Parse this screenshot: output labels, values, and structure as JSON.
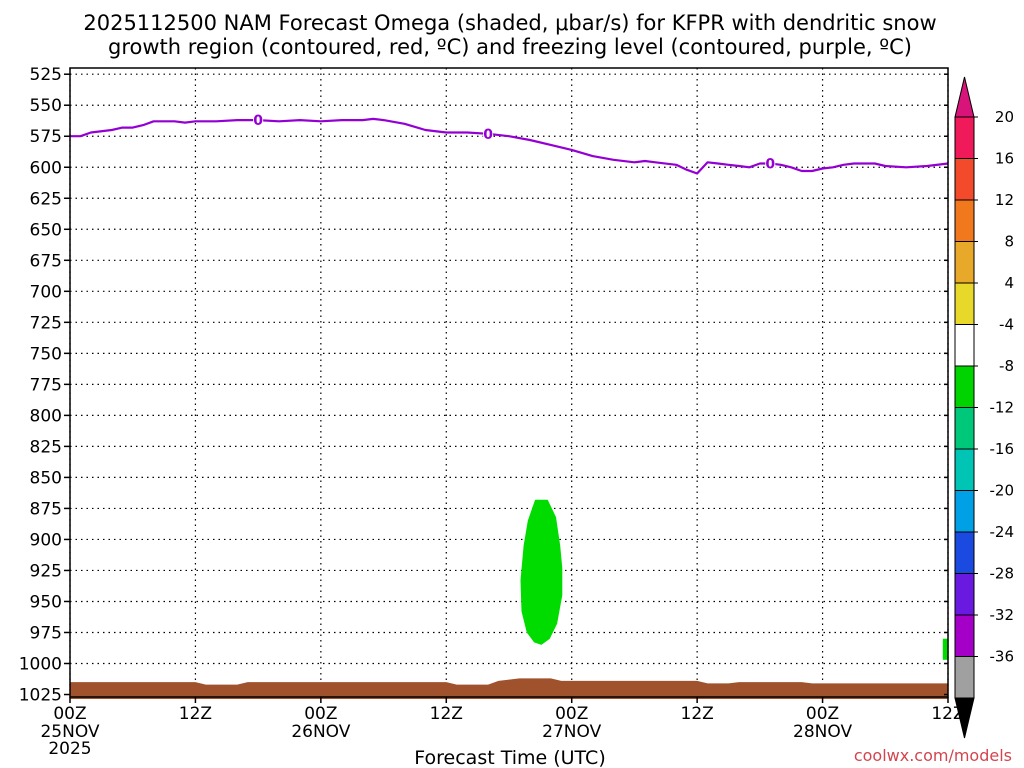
{
  "chart_data": {
    "type": "heatmap",
    "title_line1": "2025112500 NAM Forecast Omega (shaded, μbar/s) for KFPR with dendritic snow",
    "title_line2": "growth region (contoured, red, ºC) and freezing level (contoured, purple, ºC)",
    "xlabel": "Forecast Time (UTC)",
    "ylabel": "",
    "credit": "coolwx.com/models",
    "xlim_hours": [
      0,
      84
    ],
    "y_levels": [
      525,
      550,
      575,
      600,
      625,
      650,
      675,
      700,
      725,
      750,
      775,
      800,
      825,
      850,
      875,
      900,
      925,
      950,
      975,
      1000,
      1025
    ],
    "ylim_hpa": [
      520,
      1027
    ],
    "x_ticks": [
      {
        "hour": 0,
        "line1": "00Z",
        "line2": "25NOV",
        "line3": "2025"
      },
      {
        "hour": 12,
        "line1": "12Z",
        "line2": "",
        "line3": ""
      },
      {
        "hour": 24,
        "line1": "00Z",
        "line2": "26NOV",
        "line3": ""
      },
      {
        "hour": 36,
        "line1": "12Z",
        "line2": "",
        "line3": ""
      },
      {
        "hour": 48,
        "line1": "00Z",
        "line2": "27NOV",
        "line3": ""
      },
      {
        "hour": 60,
        "line1": "12Z",
        "line2": "",
        "line3": ""
      },
      {
        "hour": 72,
        "line1": "00Z",
        "line2": "28NOV",
        "line3": ""
      },
      {
        "hour": 84,
        "line1": "12Z",
        "line2": "",
        "line3": ""
      }
    ],
    "freezing_level": {
      "label": "0",
      "color": "#9400d3",
      "label_hours": [
        18,
        40,
        67
      ],
      "points": [
        [
          0,
          575
        ],
        [
          1,
          575
        ],
        [
          2,
          572
        ],
        [
          4,
          570
        ],
        [
          5,
          568
        ],
        [
          6,
          568
        ],
        [
          7,
          566
        ],
        [
          8,
          563
        ],
        [
          9,
          563
        ],
        [
          10,
          563
        ],
        [
          11,
          564
        ],
        [
          12,
          563
        ],
        [
          14,
          563
        ],
        [
          16,
          562
        ],
        [
          18,
          562
        ],
        [
          20,
          563
        ],
        [
          22,
          562
        ],
        [
          24,
          563
        ],
        [
          26,
          562
        ],
        [
          28,
          562
        ],
        [
          29,
          561
        ],
        [
          30,
          562
        ],
        [
          32,
          565
        ],
        [
          34,
          570
        ],
        [
          36,
          572
        ],
        [
          38,
          572
        ],
        [
          40,
          573
        ],
        [
          42,
          575
        ],
        [
          44,
          578
        ],
        [
          46,
          582
        ],
        [
          48,
          586
        ],
        [
          50,
          591
        ],
        [
          52,
          594
        ],
        [
          54,
          596
        ],
        [
          55,
          595
        ],
        [
          56,
          596
        ],
        [
          58,
          598
        ],
        [
          59,
          602
        ],
        [
          60,
          605
        ],
        [
          61,
          596
        ],
        [
          62,
          597
        ],
        [
          63,
          598
        ],
        [
          64,
          599
        ],
        [
          65,
          600
        ],
        [
          66,
          597
        ],
        [
          67,
          597
        ],
        [
          68,
          598
        ],
        [
          69,
          600
        ],
        [
          70,
          603
        ],
        [
          71,
          603
        ],
        [
          72,
          601
        ],
        [
          73,
          600
        ],
        [
          74,
          598
        ],
        [
          75,
          597
        ],
        [
          76,
          597
        ],
        [
          77,
          597
        ],
        [
          78,
          599
        ],
        [
          80,
          600
        ],
        [
          82,
          599
        ],
        [
          84,
          597
        ]
      ]
    },
    "omega_areas": [
      {
        "value_range": [
          -8,
          -4
        ],
        "color": "#00dc00",
        "outline": [
          [
            44.5,
            868
          ],
          [
            45.7,
            868
          ],
          [
            46.5,
            882
          ],
          [
            46.9,
            905
          ],
          [
            47.1,
            923
          ],
          [
            47.1,
            945
          ],
          [
            46.6,
            968
          ],
          [
            45.9,
            980
          ],
          [
            45.1,
            985
          ],
          [
            44.4,
            983
          ],
          [
            43.7,
            975
          ],
          [
            43.2,
            958
          ],
          [
            43.1,
            933
          ],
          [
            43.4,
            905
          ],
          [
            43.8,
            885
          ]
        ]
      },
      {
        "value_range": [
          -8,
          -4
        ],
        "color": "#00dc00",
        "outline": [
          [
            83.5,
            980
          ],
          [
            84,
            980
          ],
          [
            84,
            997
          ],
          [
            83.5,
            997
          ]
        ]
      }
    ],
    "terrain": {
      "color": "#a0522d",
      "points": [
        [
          0,
          1015
        ],
        [
          12,
          1015
        ],
        [
          13,
          1017
        ],
        [
          16,
          1017
        ],
        [
          17,
          1015
        ],
        [
          36,
          1015
        ],
        [
          37,
          1017
        ],
        [
          40,
          1017
        ],
        [
          41,
          1014
        ],
        [
          43,
          1012
        ],
        [
          46,
          1012
        ],
        [
          47,
          1014
        ],
        [
          60,
          1014
        ],
        [
          61,
          1016
        ],
        [
          63,
          1016
        ],
        [
          64,
          1015
        ],
        [
          70,
          1015
        ],
        [
          71,
          1016
        ],
        [
          84,
          1016
        ]
      ]
    },
    "colorbar": {
      "labels": [
        "20",
        "16",
        "12",
        "8",
        "4",
        "-4",
        "-8",
        "-12",
        "-16",
        "-20",
        "-24",
        "-28",
        "-32",
        "-36"
      ],
      "colors": [
        "#f01a5a",
        "#f24a2a",
        "#f2781e",
        "#e8a82a",
        "#e8d82a",
        "#ffffff",
        "#00d400",
        "#00c87a",
        "#00c4b4",
        "#00a0e6",
        "#1a4ae0",
        "#6a1ae0",
        "#a500c8",
        "#a0a0a0"
      ],
      "top_arrow_color": "#d8147a",
      "bottom_arrow_color": "#000000"
    }
  }
}
